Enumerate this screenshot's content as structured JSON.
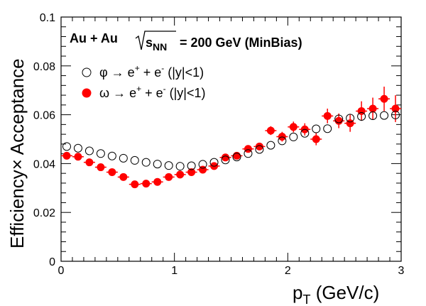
{
  "chart_data": {
    "type": "scatter",
    "header": {
      "system": "Au + Au",
      "sqrt_label": "s",
      "sqrt_sub": "NN",
      "energy": "= 200 GeV (MinBias)"
    },
    "xlabel": {
      "main": "p",
      "sub": "T",
      "rest": " (GeV/c)"
    },
    "ylabel": "Efficiency× Acceptance",
    "xlim": [
      0,
      3
    ],
    "ylim": [
      0,
      0.1
    ],
    "x_ticks": [
      {
        "value": 0,
        "label": "0"
      },
      {
        "value": 1,
        "label": "1"
      },
      {
        "value": 2,
        "label": "2"
      },
      {
        "value": 3,
        "label": "3"
      }
    ],
    "y_ticks": [
      {
        "value": 0,
        "label": "0"
      },
      {
        "value": 0.02,
        "label": "0.02"
      },
      {
        "value": 0.04,
        "label": "0.04"
      },
      {
        "value": 0.06,
        "label": "0.06"
      },
      {
        "value": 0.08,
        "label": "0.08"
      },
      {
        "value": 0.1,
        "label": "0.1"
      }
    ],
    "grid": false,
    "legend_position": "top-left",
    "series": [
      {
        "name": "φ → e+ + e- (|y|<1)",
        "legend": {
          "particle": "φ",
          "arrow": " → e",
          "sup1": "+",
          "mid": " + e",
          "sup2": "-",
          "range": "  (|y|<1)"
        },
        "marker": "open-circle",
        "color": "#000000",
        "x": [
          0.05,
          0.15,
          0.25,
          0.35,
          0.45,
          0.55,
          0.65,
          0.75,
          0.85,
          0.95,
          1.05,
          1.15,
          1.25,
          1.35,
          1.45,
          1.55,
          1.65,
          1.75,
          1.85,
          1.95,
          2.05,
          2.15,
          2.25,
          2.35,
          2.45,
          2.55,
          2.65,
          2.75,
          2.85,
          2.95
        ],
        "y": [
          0.047,
          0.0463,
          0.0452,
          0.0441,
          0.0431,
          0.0422,
          0.0413,
          0.0405,
          0.0398,
          0.0392,
          0.0389,
          0.0391,
          0.0397,
          0.0405,
          0.0415,
          0.0427,
          0.0441,
          0.0458,
          0.0475,
          0.0493,
          0.0509,
          0.0524,
          0.0542,
          0.0543,
          0.0583,
          0.0586,
          0.0593,
          0.0596,
          0.0597,
          0.0599
        ],
        "yerr": [
          0,
          0,
          0,
          0,
          0,
          0,
          0,
          0,
          0,
          0,
          0,
          0,
          0,
          0,
          0,
          0,
          0,
          0,
          0,
          0,
          0,
          0,
          0,
          0,
          0,
          0,
          0,
          0,
          0,
          0
        ]
      },
      {
        "name": "ω → e+ + e- (|y|<1)",
        "legend": {
          "particle": "ω",
          "arrow": " → e",
          "sup1": "+",
          "mid": " + e",
          "sup2": "-",
          "range": "  (|y|<1)"
        },
        "marker": "filled-circle",
        "color": "#ff0000",
        "x": [
          0.05,
          0.15,
          0.25,
          0.35,
          0.45,
          0.55,
          0.65,
          0.75,
          0.85,
          0.95,
          1.05,
          1.15,
          1.25,
          1.35,
          1.45,
          1.55,
          1.65,
          1.75,
          1.85,
          1.95,
          2.05,
          2.15,
          2.25,
          2.35,
          2.45,
          2.55,
          2.65,
          2.75,
          2.85,
          2.95
        ],
        "y": [
          0.0432,
          0.0428,
          0.0405,
          0.0385,
          0.0365,
          0.0345,
          0.0315,
          0.0318,
          0.0325,
          0.0345,
          0.0355,
          0.0365,
          0.0375,
          0.039,
          0.0425,
          0.0432,
          0.046,
          0.047,
          0.0535,
          0.051,
          0.055,
          0.054,
          0.05,
          0.0595,
          0.0575,
          0.0565,
          0.0615,
          0.0625,
          0.0665,
          0.0625
        ],
        "yerr": [
          0.001,
          0.001,
          0.001,
          0.001,
          0.001,
          0.001,
          0.001,
          0.001,
          0.001,
          0.001,
          0.001,
          0.001,
          0.001,
          0.001,
          0.0015,
          0.0015,
          0.0015,
          0.0015,
          0.0018,
          0.002,
          0.0022,
          0.0025,
          0.0025,
          0.003,
          0.003,
          0.0035,
          0.004,
          0.0045,
          0.005,
          0.0055
        ]
      }
    ]
  }
}
